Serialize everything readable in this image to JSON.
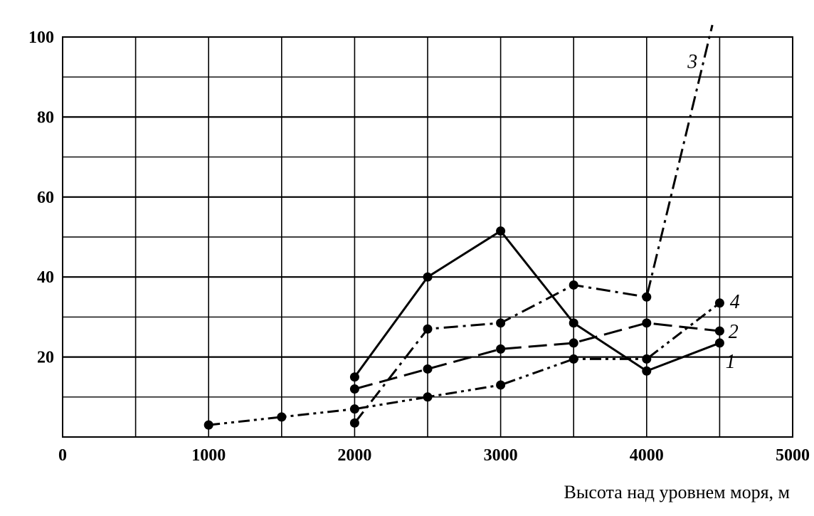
{
  "chart_data": {
    "type": "line",
    "xlabel": "Высота над уровнем моря, м",
    "ylabel": "",
    "xlim": [
      0,
      5000
    ],
    "ylim": [
      0,
      100
    ],
    "x_ticks": [
      0,
      1000,
      2000,
      3000,
      4000,
      5000
    ],
    "y_ticks": [
      20,
      40,
      60,
      80,
      100
    ],
    "grid": true,
    "series": [
      {
        "name": "1",
        "line_style": "solid",
        "points": [
          {
            "x": 2000,
            "y": 15
          },
          {
            "x": 2500,
            "y": 40
          },
          {
            "x": 3000,
            "y": 51.5
          },
          {
            "x": 3500,
            "y": 28.5
          },
          {
            "x": 4000,
            "y": 16.5
          },
          {
            "x": 4500,
            "y": 23.5
          }
        ]
      },
      {
        "name": "2",
        "line_style": "long-dash",
        "points": [
          {
            "x": 2000,
            "y": 12
          },
          {
            "x": 2500,
            "y": 17
          },
          {
            "x": 3000,
            "y": 22
          },
          {
            "x": 3500,
            "y": 23.5
          },
          {
            "x": 4000,
            "y": 28.5
          },
          {
            "x": 4500,
            "y": 26.5
          }
        ]
      },
      {
        "name": "3",
        "line_style": "dash-dot",
        "points": [
          {
            "x": 2000,
            "y": 3.5
          },
          {
            "x": 2500,
            "y": 27
          },
          {
            "x": 3000,
            "y": 28.5
          },
          {
            "x": 3500,
            "y": 38
          },
          {
            "x": 4000,
            "y": 35
          },
          {
            "x": 4450,
            "y": 103
          }
        ]
      },
      {
        "name": "4",
        "line_style": "dash-dot-dot",
        "points": [
          {
            "x": 1000,
            "y": 3
          },
          {
            "x": 1500,
            "y": 5
          },
          {
            "x": 2000,
            "y": 7
          },
          {
            "x": 2500,
            "y": 10
          },
          {
            "x": 3000,
            "y": 13
          },
          {
            "x": 3500,
            "y": 19.5
          },
          {
            "x": 4000,
            "y": 19.5
          },
          {
            "x": 4500,
            "y": 33.5
          }
        ]
      }
    ]
  }
}
